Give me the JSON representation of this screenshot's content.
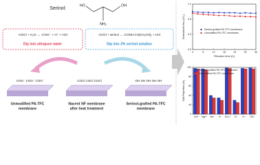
{
  "diagram": {
    "serinol_label": "Serinol:",
    "serinol_atoms": [
      "HO",
      "OH",
      "NH₂"
    ],
    "reactions": [
      {
        "equation": "-COCl + H₂O → -COO⁻ + H⁺ + HCl",
        "step": "Dip into ultrapure water"
      },
      {
        "equation": "-COCl + serinol → -CONH-CH(CH₂OH)₂ + HCl",
        "step": "Dip into 2% serinol solution"
      }
    ],
    "membranes": [
      {
        "groups": "COO⁻ COO⁻ COO⁻",
        "label": [
          "Unmodified PA-TFC",
          "membrane"
        ]
      },
      {
        "groups": "COCl COCl COCl",
        "label": [
          "Nacent NF membrane",
          "after heat treatment"
        ]
      },
      {
        "groups": "OH OH OH OH OH",
        "label": [
          "Serinol-grafted PA-TFC",
          "membrane"
        ]
      }
    ]
  },
  "chart_data": [
    {
      "type": "line",
      "x_label": "Filtration time (h)",
      "y_label": "Normalized flux (J/J₀)",
      "x": [
        0,
        3,
        6,
        9,
        12,
        15,
        18,
        21,
        24,
        27,
        30,
        33,
        36
      ],
      "series": [
        {
          "name": "Serinol-grafted PA-TFC membrane",
          "color": "#2a3fc0",
          "values": [
            1.0,
            0.99,
            0.98,
            0.98,
            0.97,
            0.98,
            0.97,
            0.97,
            0.97,
            0.96,
            0.97,
            0.96,
            0.96
          ]
        },
        {
          "name": "Unmodified PA-TFC membrane",
          "color": "#e03434",
          "values": [
            0.96,
            0.94,
            0.93,
            0.92,
            0.91,
            0.9,
            0.9,
            0.89,
            0.88,
            0.88,
            0.87,
            0.87,
            0.86
          ]
        }
      ],
      "xlim": [
        0,
        36
      ],
      "xticks": [
        0,
        6,
        12,
        18,
        24,
        30,
        36
      ],
      "ylim": [
        0,
        1.2
      ],
      "yticks": [
        {
          "value": 0,
          "label": "0.0"
        },
        {
          "value": 0.4,
          "label": "0.4"
        },
        {
          "value": 0.8,
          "label": "0.8"
        },
        {
          "value": 1.2,
          "label": "1.2"
        }
      ],
      "legend": "center"
    },
    {
      "type": "bar",
      "y_label": "Salt Rejection (%)",
      "categories": [
        "Ca²⁺",
        "Mg²⁺",
        "Na⁺",
        "K⁺",
        "SO₄²⁻",
        "Cl⁻",
        "H⁺",
        "TDC"
      ],
      "series": [
        {
          "name": "Serinol-grafted PA-TFC membrane",
          "color": "#2a3fc0",
          "values": [
            98,
            97,
            40,
            35,
            99,
            30,
            98,
            99
          ]
        },
        {
          "name": "Unmodified PA-TFC membrane",
          "color": "#e03434",
          "values": [
            97,
            95,
            35,
            30,
            98,
            25,
            97,
            97
          ]
        }
      ],
      "ylim": [
        0,
        100
      ],
      "yticks": [
        0,
        20,
        40,
        60,
        80,
        100
      ],
      "legend": "upper left"
    }
  ]
}
